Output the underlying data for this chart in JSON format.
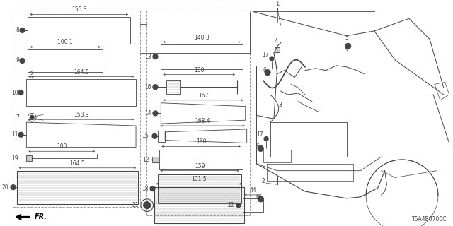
{
  "bg_color": "#ffffff",
  "part_code": "T5A4B0700C",
  "line_color": "#444444",
  "fig_w": 6.4,
  "fig_h": 3.2,
  "dpi": 100
}
